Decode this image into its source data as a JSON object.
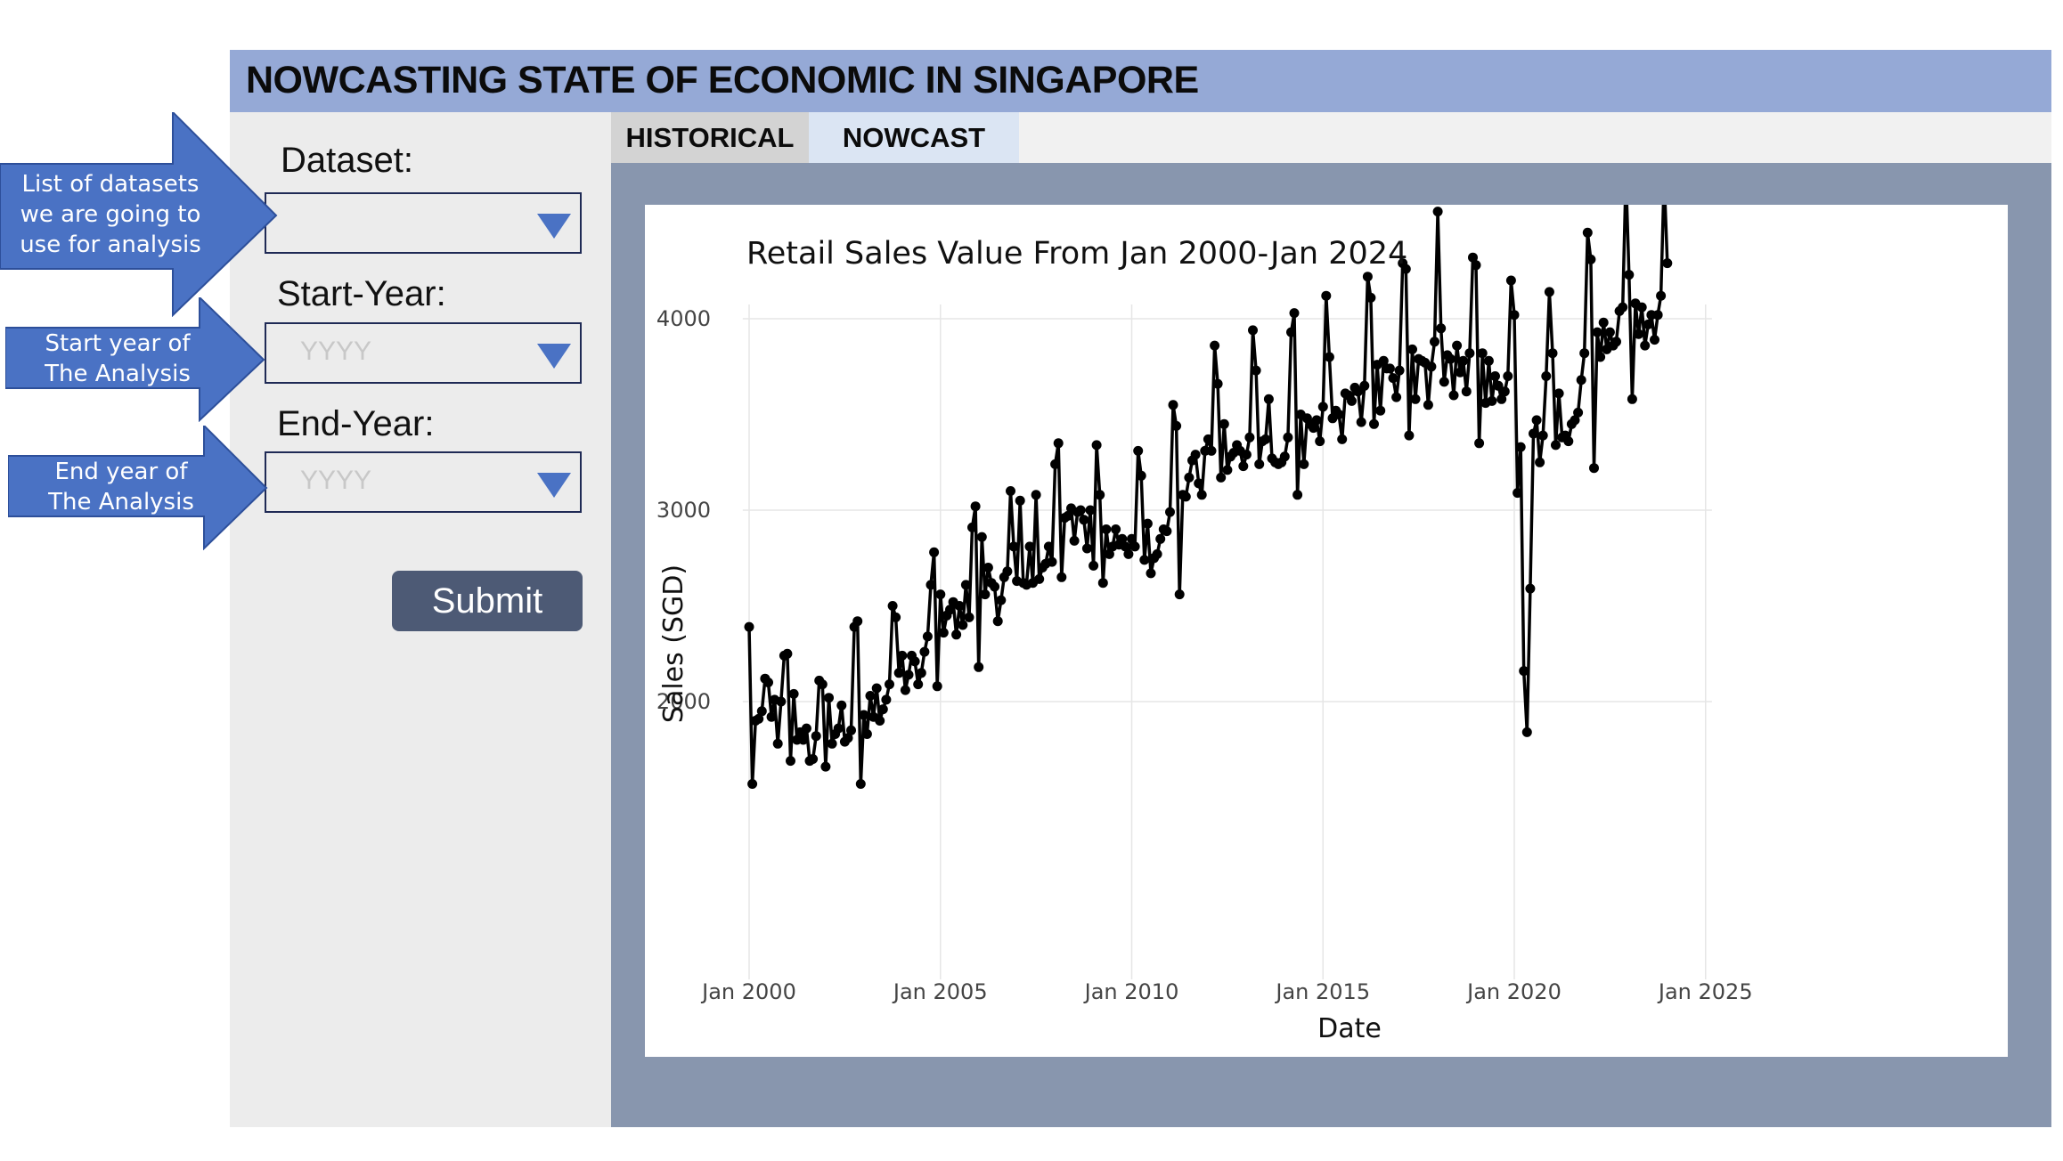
{
  "app": {
    "title": "NOWCASTING STATE OF ECONOMIC IN SINGAPORE"
  },
  "sidebar": {
    "dataset_label": "Dataset:",
    "dataset_value": "",
    "start_label": "Start-Year:",
    "start_placeholder": "YYYY",
    "end_label": "End-Year:",
    "end_placeholder": "YYYY",
    "submit_label": "Submit"
  },
  "tabs": [
    {
      "label": "HISTORICAL",
      "active": true
    },
    {
      "label": "NOWCAST",
      "active": false
    }
  ],
  "annotations": {
    "dataset": [
      "List of datasets",
      "we are going to",
      "use for analysis"
    ],
    "start": [
      "Start year of",
      "The Analysis"
    ],
    "end": [
      "End year of",
      "The Analysis"
    ]
  },
  "colors": {
    "header": "#95a9d6",
    "panel": "#8896ae",
    "callout": "#4a72c4",
    "submit": "#4d5a75"
  },
  "chart_data": {
    "type": "line",
    "title": "Retail Sales Value From Jan 2000-Jan 2024",
    "xlabel": "Date",
    "ylabel": "Sales (SGD)",
    "x_ticks": [
      "Jan 2000",
      "Jan 2005",
      "Jan 2010",
      "Jan 2015",
      "Jan 2020",
      "Jan 2025"
    ],
    "y_ticks": [
      2000,
      3000,
      4000
    ],
    "ylim": [
      1440,
      4920
    ],
    "xlim": [
      "1999-11",
      "2025-03"
    ],
    "grid": true,
    "markers": true,
    "series": [
      {
        "start": "2000-01",
        "frequency": "monthly",
        "values": [
          2390,
          1570,
          1900,
          1910,
          1950,
          2120,
          2100,
          1920,
          2010,
          1780,
          2000,
          2240,
          2250,
          1690,
          2040,
          1800,
          1840,
          1800,
          1860,
          1690,
          1700,
          1820,
          2110,
          2090,
          1660,
          2020,
          1780,
          1830,
          1860,
          1980,
          1790,
          1810,
          1850,
          2390,
          2420,
          1570,
          1930,
          1830,
          2030,
          1920,
          2070,
          1900,
          1960,
          2010,
          2090,
          2500,
          2440,
          2150,
          2240,
          2060,
          2140,
          2240,
          2210,
          2090,
          2150,
          2260,
          2340,
          2610,
          2780,
          2080,
          2560,
          2360,
          2450,
          2480,
          2520,
          2350,
          2500,
          2400,
          2610,
          2440,
          2910,
          3020,
          2180,
          2860,
          2560,
          2700,
          2620,
          2600,
          2420,
          2530,
          2650,
          2680,
          3100,
          2810,
          2630,
          3050,
          2620,
          2610,
          2810,
          2620,
          3080,
          2640,
          2700,
          2720,
          2810,
          2730,
          3240,
          3350,
          2650,
          2960,
          2970,
          3010,
          2840,
          2990,
          3000,
          2950,
          2800,
          3000,
          2710,
          3340,
          3080,
          2620,
          2900,
          2770,
          2810,
          2900,
          2820,
          2850,
          2810,
          2770,
          2850,
          2810,
          3310,
          3180,
          2740,
          2930,
          2670,
          2750,
          2770,
          2850,
          2900,
          2890,
          2990,
          3550,
          3440,
          2560,
          3080,
          3070,
          3170,
          3260,
          3290,
          3140,
          3080,
          3310,
          3370,
          3310,
          3860,
          3660,
          3170,
          3450,
          3210,
          3280,
          3300,
          3340,
          3310,
          3230,
          3290,
          3380,
          3940,
          3730,
          3240,
          3360,
          3370,
          3580,
          3270,
          3250,
          3240,
          3250,
          3280,
          3380,
          3930,
          4030,
          3080,
          3500,
          3240,
          3480,
          3450,
          3430,
          3470,
          3360,
          3540,
          4120,
          3800,
          3480,
          3520,
          3500,
          3370,
          3610,
          3600,
          3570,
          3640,
          3620,
          3460,
          3650,
          4220,
          4110,
          3450,
          3760,
          3520,
          3780,
          3740,
          3740,
          3690,
          3590,
          3730,
          4290,
          4260,
          3390,
          3840,
          3580,
          3790,
          3780,
          3770,
          3550,
          3750,
          3880,
          4560,
          3950,
          3670,
          3810,
          3790,
          3600,
          3860,
          3720,
          3780,
          3620,
          3820,
          4320,
          4280,
          3350,
          3820,
          3560,
          3780,
          3570,
          3700,
          3650,
          3580,
          3620,
          3700,
          4200,
          4020,
          3090,
          3330,
          2160,
          1840,
          2590,
          3400,
          3470,
          3250,
          3390,
          3700,
          4140,
          3820,
          3340,
          3610,
          3380,
          3390,
          3360,
          3450,
          3470,
          3510,
          3680,
          3820,
          4450,
          4310,
          3220,
          3930,
          3800,
          3980,
          3840,
          3930,
          3860,
          3880,
          4040,
          4060,
          4750,
          4230,
          3580,
          4080,
          3920,
          4060,
          3860,
          3970,
          4020,
          3890,
          4020,
          4120,
          4740,
          4290
        ]
      }
    ]
  }
}
